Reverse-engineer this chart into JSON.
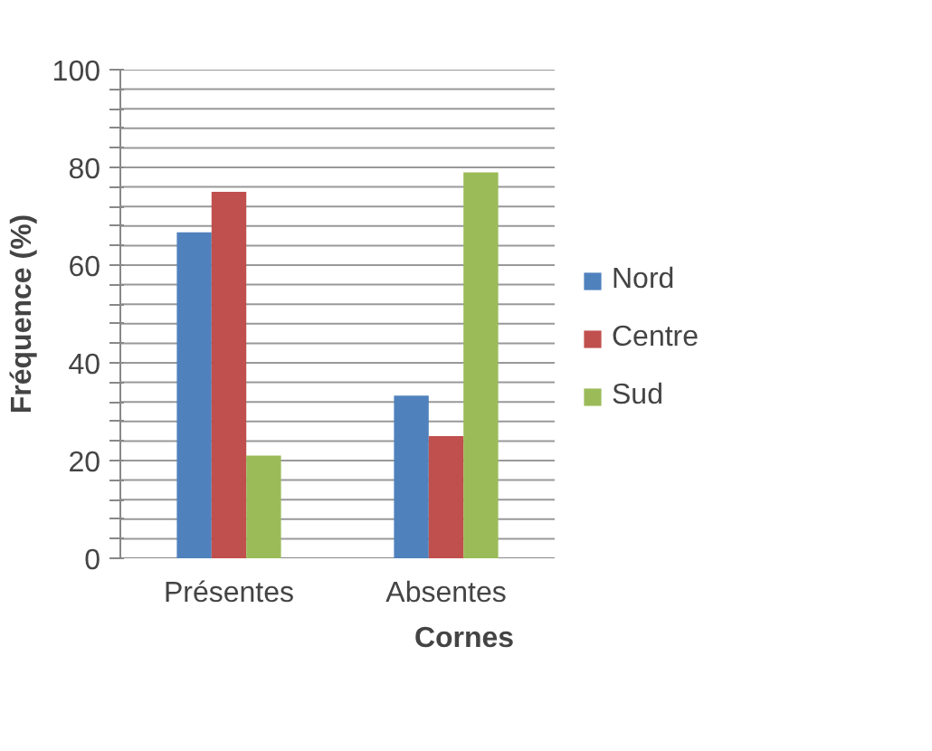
{
  "chart_data": {
    "type": "bar",
    "xlabel": "Cornes",
    "ylabel": "Fréquence (%)",
    "categories": [
      "Présentes",
      "Absentes"
    ],
    "series": [
      {
        "name": "Nord",
        "color": "#4f81bd",
        "values": [
          66.7,
          33.3
        ]
      },
      {
        "name": "Centre",
        "color": "#c0504d",
        "values": [
          75,
          25
        ]
      },
      {
        "name": "Sud",
        "color": "#9bbb59",
        "values": [
          21,
          79
        ]
      }
    ],
    "ylim": [
      0,
      100
    ],
    "yticks": [
      0,
      {
        "value": 4,
        "label": null
      },
      {
        "value": 8,
        "label": null
      },
      {
        "value": 12,
        "label": null
      },
      {
        "value": 16,
        "label": null
      },
      20,
      {
        "value": 24,
        "label": null
      },
      {
        "value": 28,
        "label": null
      },
      {
        "value": 32,
        "label": null
      },
      {
        "value": 36,
        "label": null
      },
      40,
      {
        "value": 44,
        "label": null
      },
      {
        "value": 48,
        "label": null
      },
      {
        "value": 52,
        "label": null
      },
      {
        "value": 56,
        "label": null
      },
      60,
      {
        "value": 64,
        "label": null
      },
      {
        "value": 68,
        "label": null
      },
      {
        "value": 72,
        "label": null
      },
      {
        "value": 76,
        "label": null
      },
      80,
      {
        "value": 84,
        "label": null
      },
      {
        "value": 88,
        "label": null
      },
      {
        "value": 92,
        "label": null
      },
      {
        "value": 96,
        "label": null
      },
      100
    ],
    "grid": "y",
    "legend": "right"
  }
}
